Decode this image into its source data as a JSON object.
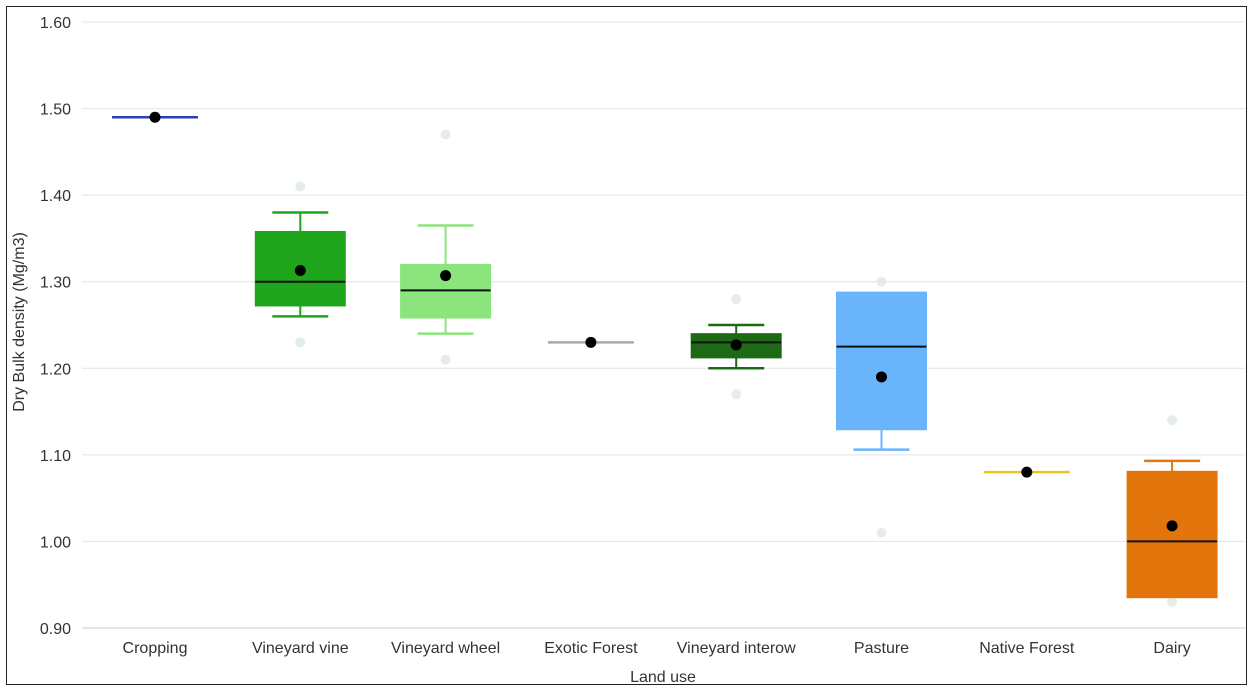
{
  "chart_data": {
    "type": "box",
    "xlabel": "Land use",
    "ylabel": "Dry Bulk density (Mg/m3)",
    "ylim": [
      0.9,
      1.6
    ],
    "y_ticks": [
      "0.90",
      "1.00",
      "1.10",
      "1.20",
      "1.30",
      "1.40",
      "1.50",
      "1.60"
    ],
    "grid": true,
    "categories": [
      "Cropping",
      "Vineyard vine",
      "Vineyard wheel",
      "Exotic Forest",
      "Vineyard interow",
      "Pasture",
      "Native Forest",
      "Dairy"
    ],
    "boxes": [
      {
        "category": "Cropping",
        "color": "#2b3fb8",
        "min": 1.49,
        "q1": 1.49,
        "median": 1.49,
        "q3": 1.49,
        "max": 1.49,
        "mean": 1.49,
        "outliers": []
      },
      {
        "category": "Vineyard vine",
        "color": "#1fa51b",
        "min": 1.26,
        "q1": 1.272,
        "median": 1.3,
        "q3": 1.358,
        "max": 1.38,
        "mean": 1.313,
        "outliers": [
          1.41,
          1.23
        ]
      },
      {
        "category": "Vineyard wheel",
        "color": "#8be47c",
        "min": 1.24,
        "q1": 1.258,
        "median": 1.29,
        "q3": 1.32,
        "max": 1.365,
        "mean": 1.307,
        "outliers": [
          1.47,
          1.21
        ]
      },
      {
        "category": "Exotic Forest",
        "color": "#aaaaaa",
        "min": 1.23,
        "q1": 1.23,
        "median": 1.23,
        "q3": 1.23,
        "max": 1.23,
        "mean": 1.23,
        "outliers": []
      },
      {
        "category": "Vineyard interow",
        "color": "#1e6a14",
        "min": 1.2,
        "q1": 1.212,
        "median": 1.23,
        "q3": 1.24,
        "max": 1.25,
        "mean": 1.227,
        "outliers": [
          1.28,
          1.17
        ]
      },
      {
        "category": "Pasture",
        "color": "#6ab4fb",
        "min": 1.106,
        "q1": 1.129,
        "median": 1.225,
        "q3": 1.288,
        "max": 1.288,
        "mean": 1.19,
        "outliers": [
          1.3,
          1.01
        ]
      },
      {
        "category": "Native Forest",
        "color": "#f0c419",
        "min": 1.08,
        "q1": 1.08,
        "median": 1.08,
        "q3": 1.08,
        "max": 1.08,
        "mean": 1.08,
        "outliers": []
      },
      {
        "category": "Dairy",
        "color": "#e2760c",
        "min": 0.935,
        "q1": 0.935,
        "median": 1.0,
        "q3": 1.081,
        "max": 1.093,
        "mean": 1.018,
        "outliers": [
          1.14,
          0.93
        ]
      }
    ]
  }
}
